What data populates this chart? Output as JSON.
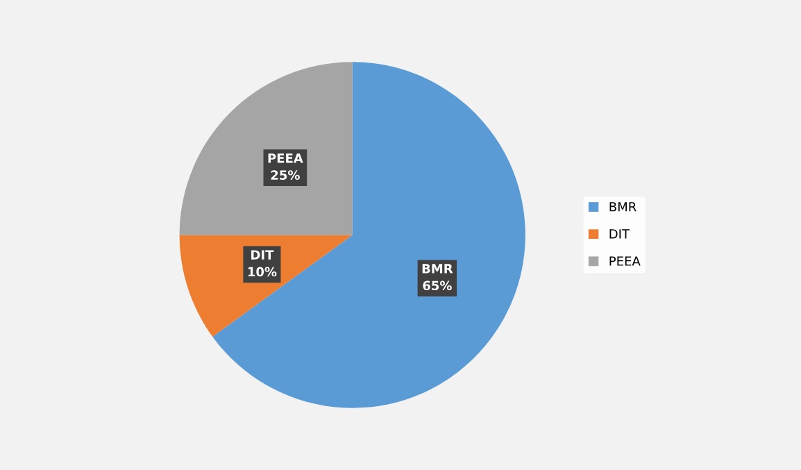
{
  "chart_data": {
    "type": "pie",
    "categories": [
      "BMR",
      "DIT",
      "PEEA"
    ],
    "values": [
      65,
      10,
      25
    ],
    "colors": [
      "#5b9bd5",
      "#ed7d31",
      "#a5a5a5"
    ],
    "value_labels": [
      "65%",
      "10%",
      "25%"
    ],
    "legend": "right"
  }
}
